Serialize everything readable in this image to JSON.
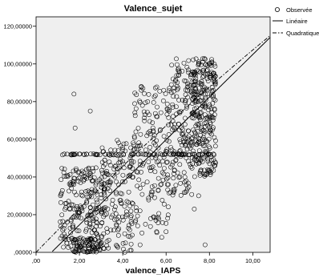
{
  "chart_data": {
    "type": "scatter",
    "title": "Valence_sujet",
    "xlabel": "valence_IAPS",
    "ylabel": "",
    "xlim": [
      0,
      10.8
    ],
    "ylim": [
      0,
      125
    ],
    "x_ticks": [
      ",00",
      "2,00",
      "4,00",
      "6,00",
      "8,00",
      "10,00"
    ],
    "x_tick_values": [
      0,
      2,
      4,
      6,
      8,
      10
    ],
    "y_ticks": [
      ",00000",
      "20,00000",
      "40,00000",
      "60,00000",
      "80,00000",
      "100,00000",
      "120,00000"
    ],
    "y_tick_values": [
      0,
      20,
      40,
      60,
      80,
      100,
      120
    ],
    "grid": false,
    "background": "#efefef",
    "legend_position": "top-right",
    "legend": {
      "observed": "Observée",
      "linear": "Linéaire",
      "quadratic": "Quadratique"
    },
    "fits": {
      "linear": {
        "intercept": -8.0,
        "slope": 11.3
      },
      "quadratic": {
        "a": 0.0,
        "b": 11.9,
        "c": -0.116
      }
    },
    "clusters": [
      {
        "x_min": 1.1,
        "x_max": 3.2,
        "y_min": 0,
        "y_max": 45,
        "count": 220
      },
      {
        "x_min": 1.6,
        "x_max": 3.0,
        "y_min": 0,
        "y_max": 8,
        "count": 70
      },
      {
        "x_min": 3.0,
        "x_max": 4.5,
        "y_min": 0,
        "y_max": 60,
        "count": 160
      },
      {
        "x_min": 4.5,
        "x_max": 6.2,
        "y_min": 10,
        "y_max": 90,
        "count": 170
      },
      {
        "x_min": 6.2,
        "x_max": 7.2,
        "y_min": 30,
        "y_max": 103,
        "count": 150
      },
      {
        "x_min": 7.2,
        "x_max": 8.3,
        "y_min": 40,
        "y_max": 103,
        "count": 280
      }
    ],
    "flat_band": {
      "y": 52,
      "x_min": 1.2,
      "x_max": 8.3,
      "count": 90
    },
    "outliers": [
      {
        "x": 1.75,
        "y": 84
      },
      {
        "x": 2.5,
        "y": 75
      },
      {
        "x": 1.8,
        "y": 66
      },
      {
        "x": 7.8,
        "y": 4
      },
      {
        "x": 7.3,
        "y": 23
      },
      {
        "x": 4.8,
        "y": 4
      },
      {
        "x": 5.8,
        "y": 8
      },
      {
        "x": 7.5,
        "y": 30
      }
    ]
  }
}
